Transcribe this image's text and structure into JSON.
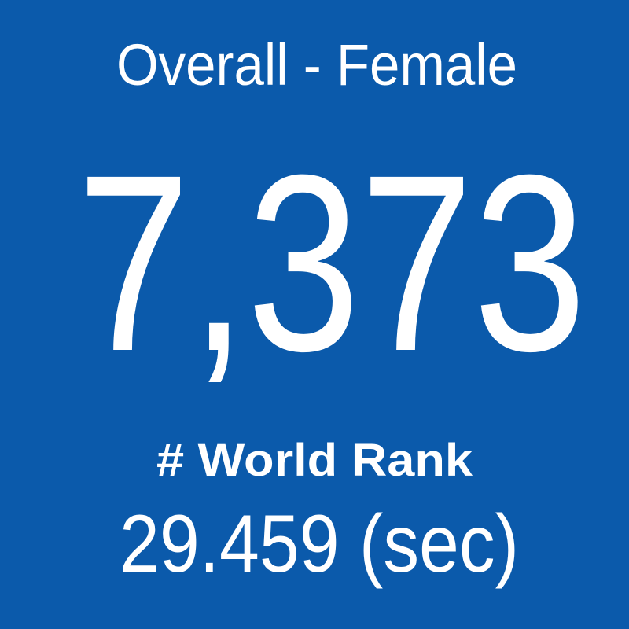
{
  "tile": {
    "title": "Overall - Female",
    "value": "7,373",
    "label": "# World Rank",
    "subvalue": "29.459 (sec)"
  }
}
